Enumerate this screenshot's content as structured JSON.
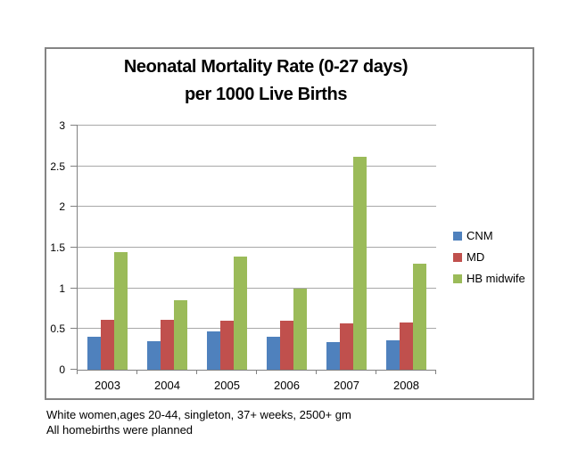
{
  "chart_data": {
    "type": "bar",
    "title_line1": "Neonatal Mortality Rate (0-27 days)",
    "title_line2": "per 1000 Live Births",
    "categories": [
      "2003",
      "2004",
      "2005",
      "2006",
      "2007",
      "2008"
    ],
    "series": [
      {
        "name": "CNM",
        "color": "#4f81bd",
        "values": [
          0.4,
          0.35,
          0.47,
          0.41,
          0.34,
          0.36
        ]
      },
      {
        "name": "MD",
        "color": "#c0504d",
        "values": [
          0.61,
          0.61,
          0.6,
          0.6,
          0.57,
          0.58
        ]
      },
      {
        "name": "HB midwife",
        "color": "#9bbb59",
        "values": [
          1.44,
          0.85,
          1.39,
          1.0,
          2.62,
          1.3
        ]
      }
    ],
    "xlabel": "",
    "ylabel": "",
    "ylim": [
      0,
      3
    ],
    "ytick_step": 0.5,
    "ytick_labels_top_to_bottom": [
      "3",
      "2.5",
      "2",
      "1.5",
      "1",
      "0.5",
      "0"
    ],
    "grid": "horizontal",
    "legend_position": "right",
    "plot_border_color": "#808080",
    "gridline_color": "#a8a8a8",
    "outer_border_color": "#848484"
  },
  "footnotes": {
    "line1": "White women,ages 20-44, singleton, 37+ weeks, 2500+ gm",
    "line2": "All homebirths were planned"
  }
}
